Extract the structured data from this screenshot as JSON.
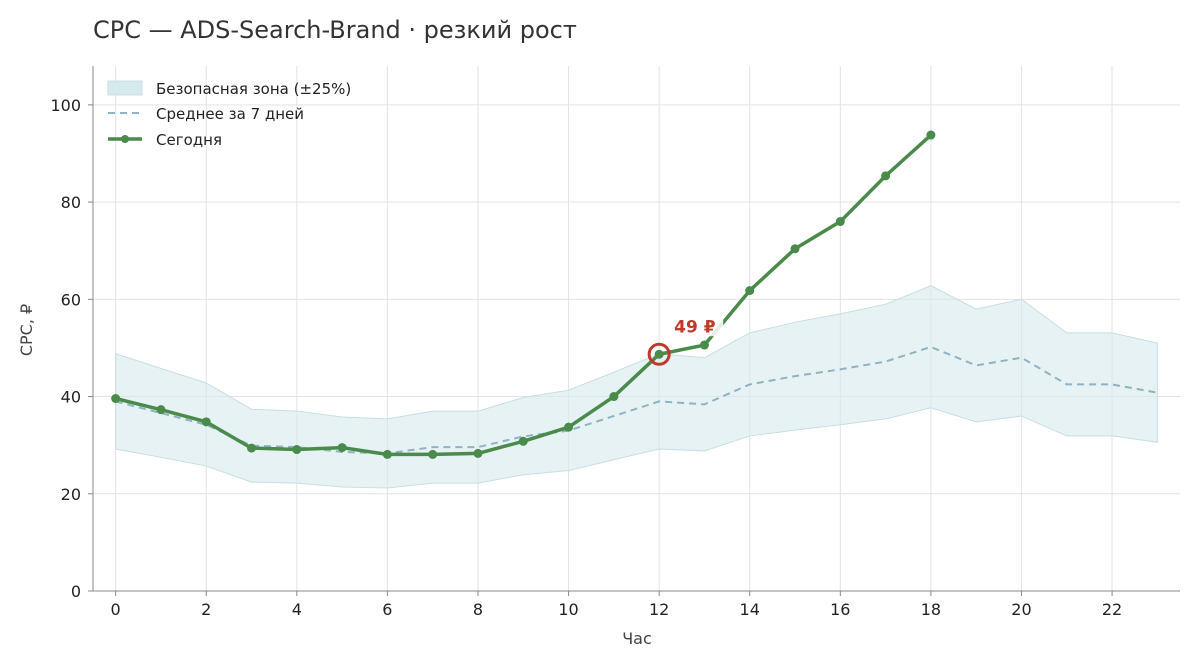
{
  "chart_data": {
    "type": "line",
    "title": "CPC — ADS-Search-Brand · резкий рост",
    "xlabel": "Час",
    "ylabel": "CPC, ₽",
    "xlim": [
      -0.5,
      23.5
    ],
    "ylim": [
      0,
      108
    ],
    "xticks": [
      0,
      2,
      4,
      6,
      8,
      10,
      12,
      14,
      16,
      18,
      20,
      22
    ],
    "yticks": [
      0,
      20,
      40,
      60,
      80,
      100
    ],
    "grid": true,
    "legend": "top-left",
    "legend_entries": [
      "Безопасная зона (±25%)",
      "Среднее за 7 дней",
      "Сегодня"
    ],
    "colors": {
      "band": "#d6e9ec",
      "band_edge": "#c7dfe3",
      "average": "#8fb3c2",
      "today": "#4a8a4a",
      "annotation": "#c0392b"
    },
    "series": [
      {
        "name": "Безопасная зона (±25%)",
        "kind": "band",
        "x": [
          0,
          1,
          2,
          3,
          4,
          5,
          6,
          7,
          8,
          9,
          10,
          11,
          12,
          13,
          14,
          15,
          16,
          17,
          18,
          19,
          20,
          21,
          22,
          23
        ],
        "lower": [
          29.2,
          27.5,
          25.7,
          22.4,
          22.2,
          21.4,
          21.2,
          22.2,
          22.2,
          23.9,
          24.8,
          27.0,
          29.2,
          28.8,
          31.9,
          33.1,
          34.2,
          35.4,
          37.7,
          34.8,
          36.0,
          31.9,
          31.9,
          30.6
        ],
        "upper": [
          48.8,
          45.8,
          42.8,
          37.4,
          37.0,
          35.8,
          35.4,
          37.0,
          37.0,
          39.8,
          41.3,
          45.0,
          48.8,
          48.0,
          53.1,
          55.3,
          57.0,
          59.0,
          62.8,
          58.0,
          60.0,
          53.1,
          53.1,
          51.0
        ]
      },
      {
        "name": "Среднее за 7 дней",
        "kind": "dashed",
        "x": [
          0,
          1,
          2,
          3,
          4,
          5,
          6,
          7,
          8,
          9,
          10,
          11,
          12,
          13,
          14,
          15,
          16,
          17,
          18,
          19,
          20,
          21,
          22,
          23
        ],
        "y": [
          39.0,
          36.6,
          34.2,
          29.9,
          29.6,
          28.6,
          28.3,
          29.6,
          29.6,
          31.8,
          33.0,
          36.0,
          39.0,
          38.4,
          42.5,
          44.2,
          45.6,
          47.2,
          50.2,
          46.4,
          48.0,
          42.5,
          42.5,
          40.8
        ]
      },
      {
        "name": "Сегодня",
        "kind": "line-markers",
        "x": [
          0,
          1,
          2,
          3,
          4,
          5,
          6,
          7,
          8,
          9,
          10,
          11,
          12,
          13,
          14,
          15,
          16,
          17,
          18
        ],
        "y": [
          39.6,
          37.3,
          34.8,
          29.4,
          29.1,
          29.5,
          28.1,
          28.1,
          28.3,
          30.8,
          33.7,
          40.0,
          48.7,
          50.6,
          61.8,
          70.4,
          76.0,
          85.4,
          93.8
        ]
      }
    ],
    "annotations": [
      {
        "x": 12,
        "y": 48.7,
        "text": "49 ₽"
      }
    ]
  }
}
